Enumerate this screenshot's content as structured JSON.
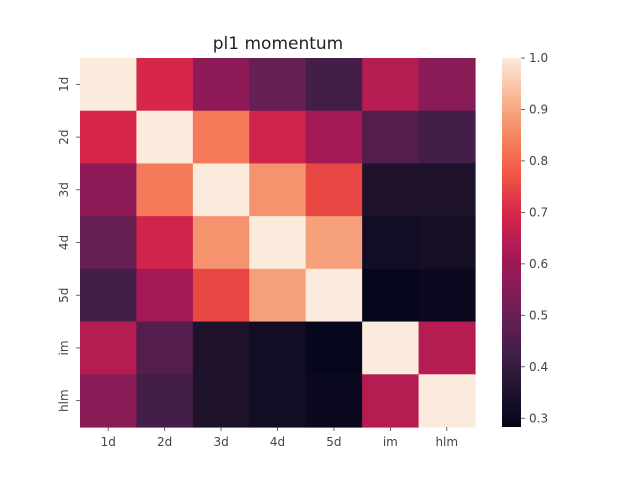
{
  "chart_data": {
    "type": "heatmap",
    "title": "pl1 momentum",
    "xlabel": "",
    "ylabel": "",
    "x_categories": [
      "1d",
      "2d",
      "3d",
      "4d",
      "5d",
      "im",
      "hlm"
    ],
    "y_categories": [
      "1d",
      "2d",
      "3d",
      "4d",
      "5d",
      "im",
      "hlm"
    ],
    "values": [
      [
        1.0,
        0.7,
        0.57,
        0.49,
        0.43,
        0.64,
        0.56
      ],
      [
        0.7,
        1.0,
        0.83,
        0.69,
        0.61,
        0.46,
        0.43
      ],
      [
        0.57,
        0.83,
        1.0,
        0.87,
        0.75,
        0.35,
        0.35
      ],
      [
        0.49,
        0.69,
        0.87,
        1.0,
        0.89,
        0.32,
        0.33
      ],
      [
        0.43,
        0.61,
        0.75,
        0.89,
        1.0,
        0.29,
        0.3
      ],
      [
        0.64,
        0.46,
        0.35,
        0.32,
        0.29,
        1.0,
        0.64
      ],
      [
        0.56,
        0.43,
        0.35,
        0.32,
        0.3,
        0.64,
        1.0
      ]
    ],
    "colorbar": {
      "vmin": 0.283,
      "vmax": 1.0,
      "ticks": [
        "1.0",
        "0.9",
        "0.8",
        "0.7",
        "0.6",
        "0.5",
        "0.4",
        "0.3"
      ],
      "colormap": "rocket"
    },
    "grid": false
  }
}
